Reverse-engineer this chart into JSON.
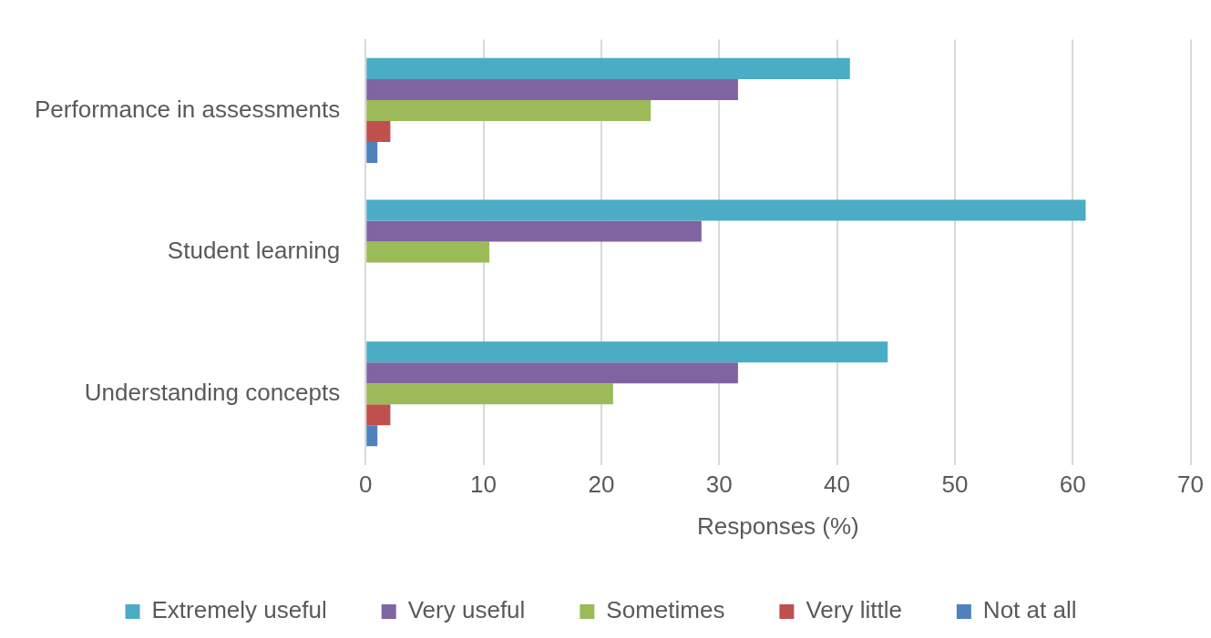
{
  "chart_data": {
    "type": "bar",
    "orientation": "horizontal",
    "xlabel": "Responses (%)",
    "categories": [
      "Performance in assessments",
      "Student learning",
      "Understanding concepts"
    ],
    "series": [
      {
        "name": "Extremely useful",
        "color": "#4bacc6",
        "values": [
          41.1,
          61.1,
          44.3
        ]
      },
      {
        "name": "Very useful",
        "color": "#8064a2",
        "values": [
          31.6,
          28.5,
          31.6
        ]
      },
      {
        "name": "Sometimes",
        "color": "#9bbb59",
        "values": [
          24.2,
          10.5,
          21.0
        ]
      },
      {
        "name": "Very little",
        "color": "#c0504d",
        "values": [
          2.1,
          0,
          2.1
        ]
      },
      {
        "name": "Not at all",
        "color": "#4f81bd",
        "values": [
          1.0,
          0,
          1.0
        ]
      }
    ],
    "xlim": [
      0,
      70
    ],
    "xticks": [
      0,
      10,
      20,
      30,
      40,
      50,
      60,
      70
    ],
    "grid": "x",
    "legend": "bottom"
  }
}
